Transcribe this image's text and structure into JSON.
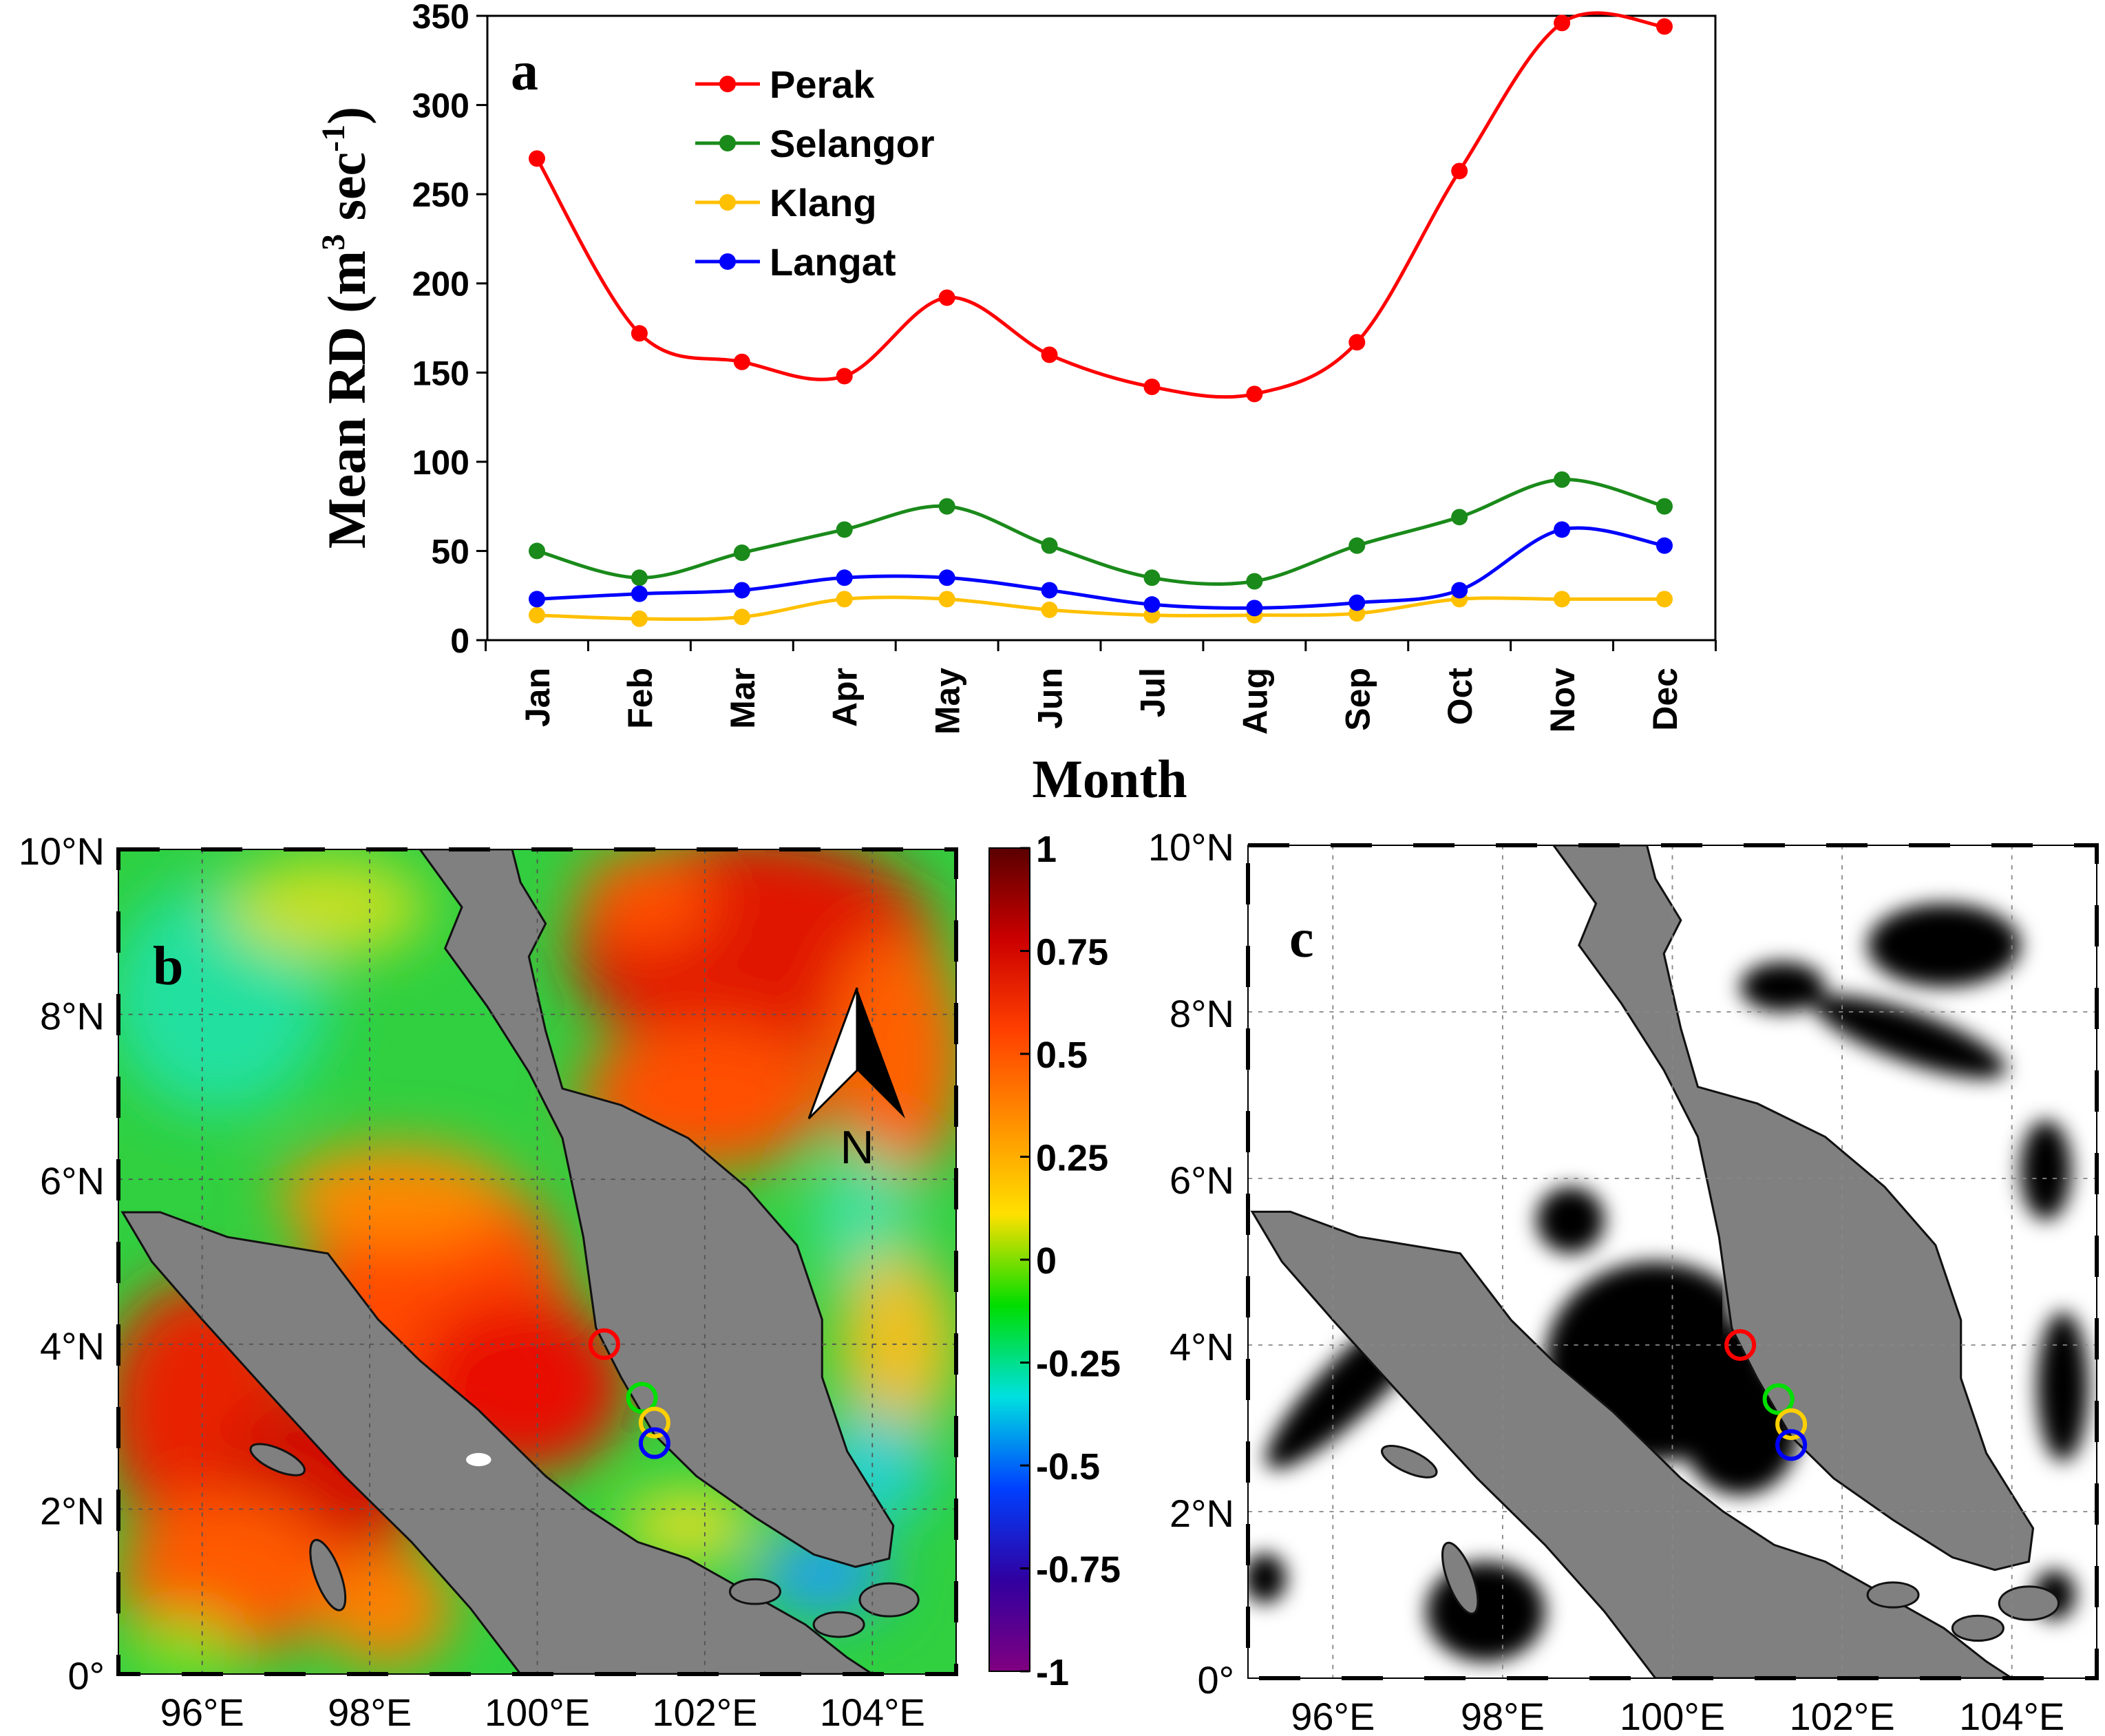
{
  "chart_data": [
    {
      "type": "line",
      "panel_label": "a",
      "xlabel": "Month",
      "ylabel": "Mean RD (m",
      "ylabel_sup1": "3",
      "ylabel_mid": " sec",
      "ylabel_sup2": "-1",
      "ylabel_end": ")",
      "categories": [
        "Jan",
        "Feb",
        "Mar",
        "Apr",
        "May",
        "Jun",
        "Jul",
        "Aug",
        "Sep",
        "Oct",
        "Nov",
        "Dec"
      ],
      "ylim": [
        0,
        350
      ],
      "yticks": [
        0,
        50,
        100,
        150,
        200,
        250,
        300,
        350
      ],
      "grid": false,
      "legend_position": "top-left",
      "series": [
        {
          "name": "Perak",
          "color": "#ff0000",
          "values": [
            270,
            172,
            156,
            148,
            192,
            160,
            142,
            138,
            167,
            263,
            346,
            344
          ]
        },
        {
          "name": "Selangor",
          "color": "#1a8a1a",
          "values": [
            50,
            35,
            49,
            62,
            75,
            53,
            35,
            33,
            53,
            69,
            90,
            75
          ]
        },
        {
          "name": "Klang",
          "color": "#ffc000",
          "values": [
            14,
            12,
            13,
            23,
            23,
            17,
            14,
            14,
            15,
            23,
            23,
            23
          ]
        },
        {
          "name": "Langat",
          "color": "#0000ff",
          "values": [
            23,
            26,
            28,
            35,
            35,
            28,
            20,
            18,
            21,
            28,
            62,
            53
          ]
        }
      ]
    }
  ],
  "maps": {
    "lon_ticks": [
      "96°E",
      "98°E",
      "100°E",
      "102°E",
      "104°E"
    ],
    "lat_ticks": [
      "0°",
      "2°N",
      "4°N",
      "6°N",
      "8°N",
      "10°N"
    ],
    "panel_b": {
      "label": "b",
      "north_label": "N"
    },
    "panel_c": {
      "label": "c"
    },
    "colorbar": {
      "ticks": [
        "1",
        "0.75",
        "0.5",
        "0.25",
        "0",
        "-0.25",
        "-0.5",
        "-0.75",
        "-1"
      ],
      "colormap": [
        "#5a0000",
        "#cc0000",
        "#ff4000",
        "#ff9000",
        "#ffe000",
        "#00dd00",
        "#00e0e0",
        "#0040ff",
        "#3000a0",
        "#800080"
      ]
    },
    "station_markers": [
      {
        "color": "#ff0000"
      },
      {
        "color": "#00e000"
      },
      {
        "color": "#ffd000"
      },
      {
        "color": "#0000ff"
      }
    ],
    "land_color": "#808080"
  }
}
